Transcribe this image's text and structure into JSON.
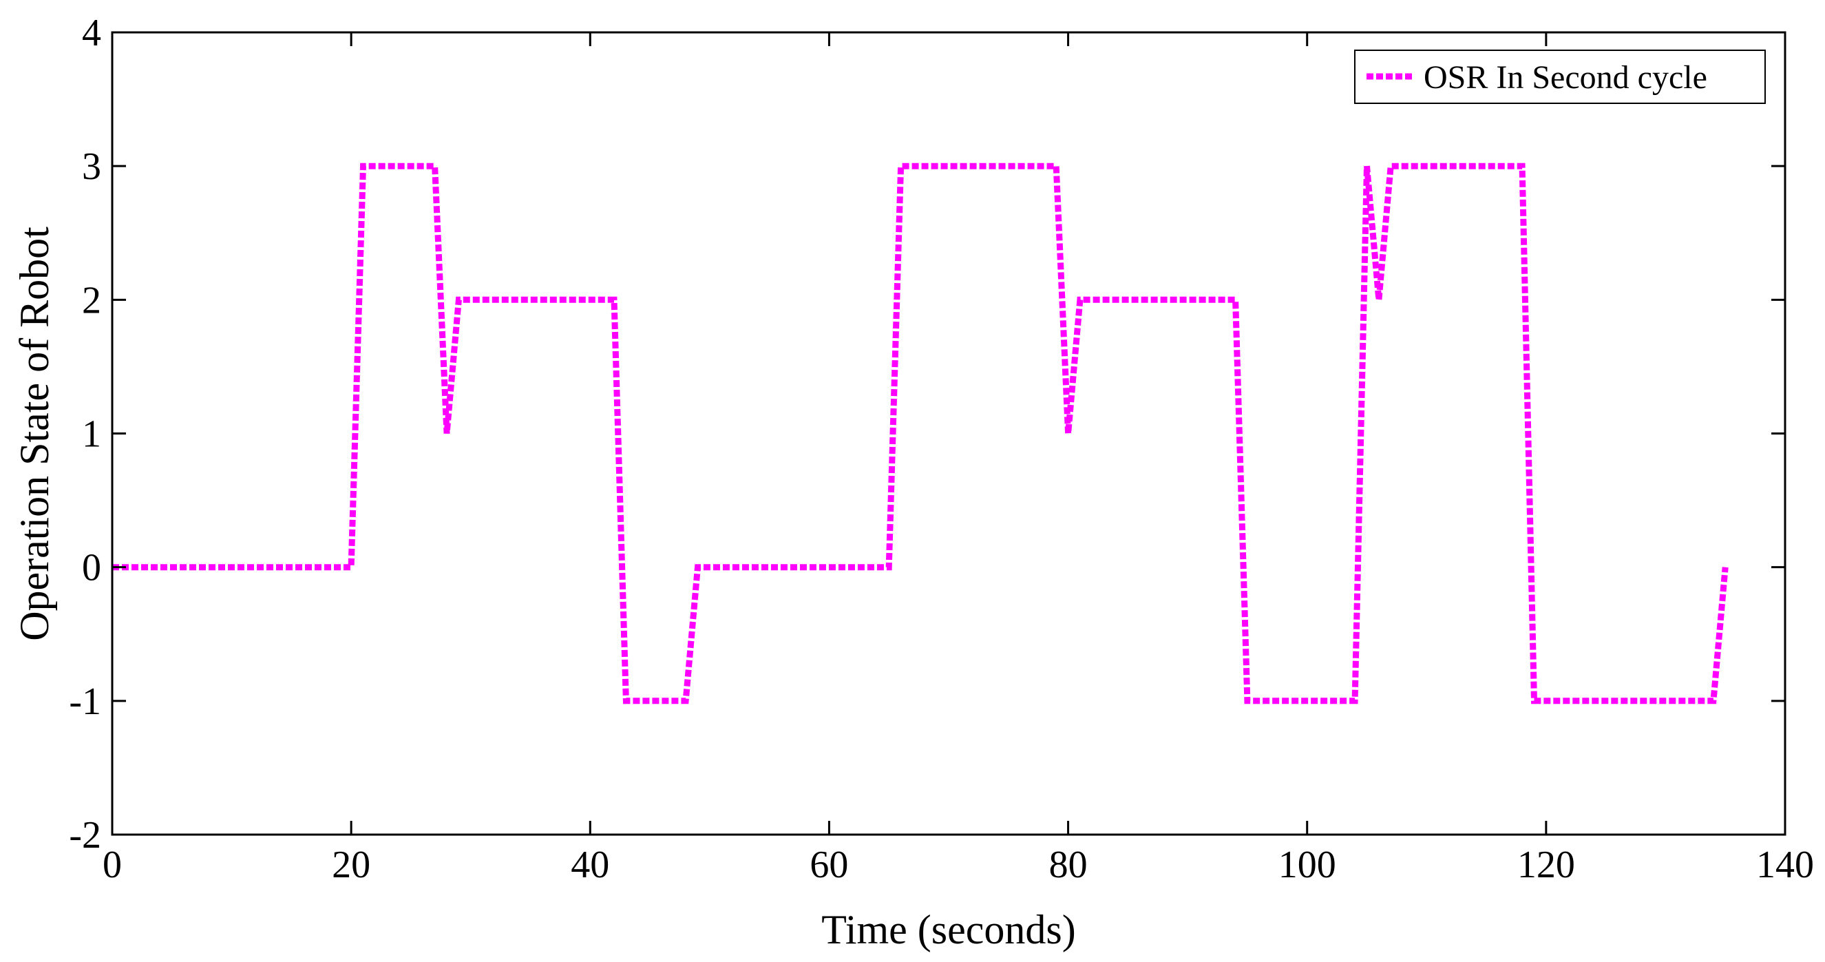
{
  "chart_data": {
    "type": "line",
    "title": "",
    "xlabel": "Time (seconds)",
    "ylabel": "Operation State of Robot",
    "xlim": [
      0,
      140
    ],
    "ylim": [
      -2,
      4
    ],
    "xticks": [
      0,
      20,
      40,
      60,
      80,
      100,
      120,
      140
    ],
    "yticks": [
      -2,
      -1,
      0,
      1,
      2,
      3,
      4
    ],
    "xtick_labels": [
      "0",
      "20",
      "40",
      "60",
      "80",
      "100",
      "120",
      "140"
    ],
    "ytick_labels": [
      "-2",
      "-1",
      "0",
      "1",
      "2",
      "3",
      "4"
    ],
    "grid": false,
    "legend_position": "top-right",
    "series": [
      {
        "name": "OSR In Second cycle",
        "color": "#ff00ff",
        "line_style": "dotted",
        "x": [
          0,
          20,
          21,
          27,
          28,
          29,
          42,
          43,
          48,
          49,
          65,
          66,
          79,
          80,
          81,
          94,
          95,
          104,
          105,
          106,
          107,
          118,
          119,
          134,
          135
        ],
        "y": [
          0,
          0,
          3,
          3,
          1,
          2,
          2,
          -1,
          -1,
          0,
          0,
          3,
          3,
          1,
          2,
          2,
          -1,
          -1,
          3,
          2,
          3,
          3,
          -1,
          -1,
          0
        ]
      }
    ]
  }
}
